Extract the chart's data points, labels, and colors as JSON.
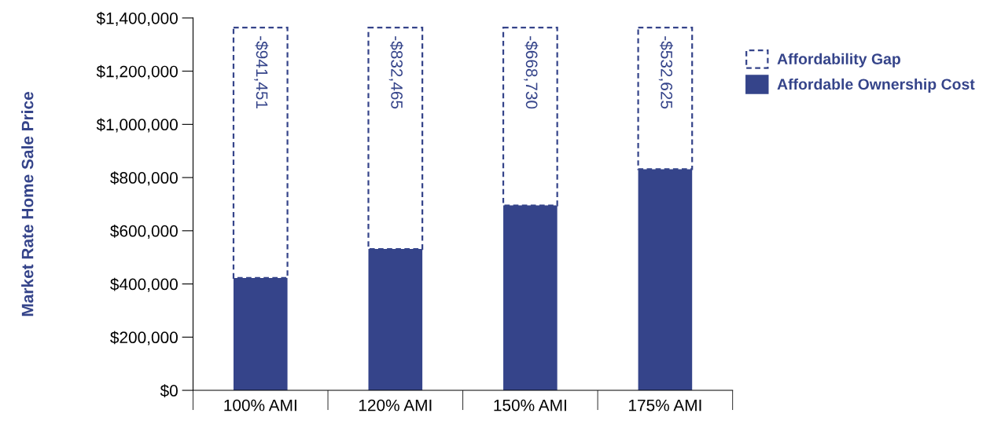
{
  "chart_data": {
    "type": "bar",
    "ylabel": "Market Rate Home Sale Price",
    "categories": [
      "100% AMI",
      "120% AMI",
      "150% AMI",
      "175% AMI"
    ],
    "series": [
      {
        "name": "Affordable Ownership Cost",
        "color": "#35448a",
        "values": [
          422500,
          531500,
          695300,
          831400
        ]
      },
      {
        "name": "Affordability Gap",
        "color": "#35448a",
        "line_style": "dashed",
        "base": [
          1364000,
          1364000,
          1364000,
          1364000
        ],
        "values": [
          -941451,
          -832465,
          -668730,
          -532625
        ],
        "value_labels": [
          "-$941,451",
          "-$832,465",
          "-$668,730",
          "-$532,625"
        ]
      }
    ],
    "ylim": [
      0,
      1400000
    ],
    "yticks": [
      {
        "value": 0,
        "label": "$0"
      },
      {
        "value": 200000,
        "label": "$200,000"
      },
      {
        "value": 400000,
        "label": "$400,000"
      },
      {
        "value": 600000,
        "label": "$600,000"
      },
      {
        "value": 800000,
        "label": "$800,000"
      },
      {
        "value": 1000000,
        "label": "$1,000,000"
      },
      {
        "value": 1200000,
        "label": "$1,200,000"
      },
      {
        "value": 1400000,
        "label": "$1,400,000"
      }
    ],
    "grid": false,
    "legend": "right"
  }
}
